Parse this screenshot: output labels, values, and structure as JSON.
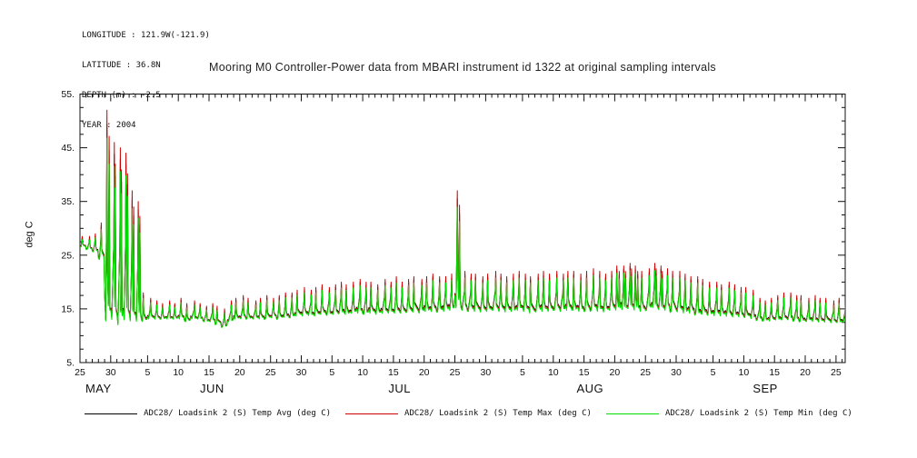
{
  "header": {
    "longitude": "LONGITUDE : 121.9W(-121.9)",
    "latitude": "LATITUDE : 36.8N",
    "depth": "DEPTH (m) : -2.5",
    "year": "YEAR : 2004"
  },
  "chart_data": {
    "type": "line",
    "title": "Mooring M0 Controller-Power data from MBARI instrument id 1322 at original sampling intervals",
    "ylabel": "deg C",
    "ylim": [
      5,
      55
    ],
    "x_domain_days": 124.5,
    "x_range_label": "May 25 to Sep 26 (year 2004), minor ticks daily, major ticks every 5 days",
    "grid": "off",
    "legend_position": "bottom",
    "y_ticks": [
      {
        "v": 5,
        "label": "5."
      },
      {
        "v": 15,
        "label": "15."
      },
      {
        "v": 25,
        "label": "25."
      },
      {
        "v": 35,
        "label": "35."
      },
      {
        "v": 45,
        "label": "45."
      },
      {
        "v": 55,
        "label": "55."
      }
    ],
    "x_major_ticks": [
      {
        "d": 0,
        "label": "25"
      },
      {
        "d": 5,
        "label": "30"
      },
      {
        "d": 11,
        "label": "5"
      },
      {
        "d": 16,
        "label": "10"
      },
      {
        "d": 21,
        "label": "15"
      },
      {
        "d": 26,
        "label": "20"
      },
      {
        "d": 31,
        "label": "25"
      },
      {
        "d": 36,
        "label": "30"
      },
      {
        "d": 41,
        "label": "5"
      },
      {
        "d": 46,
        "label": "10"
      },
      {
        "d": 51,
        "label": "15"
      },
      {
        "d": 56,
        "label": "20"
      },
      {
        "d": 61,
        "label": "25"
      },
      {
        "d": 66,
        "label": "30"
      },
      {
        "d": 72,
        "label": "5"
      },
      {
        "d": 77,
        "label": "10"
      },
      {
        "d": 82,
        "label": "15"
      },
      {
        "d": 87,
        "label": "20"
      },
      {
        "d": 92,
        "label": "25"
      },
      {
        "d": 97,
        "label": "30"
      },
      {
        "d": 103,
        "label": "5"
      },
      {
        "d": 108,
        "label": "10"
      },
      {
        "d": 113,
        "label": "15"
      },
      {
        "d": 118,
        "label": "20"
      },
      {
        "d": 123,
        "label": "25"
      }
    ],
    "month_labels": [
      {
        "label": "MAY",
        "d": 3
      },
      {
        "label": "JUN",
        "d": 21.5
      },
      {
        "label": "JUL",
        "d": 52
      },
      {
        "label": "AUG",
        "d": 83
      },
      {
        "label": "SEP",
        "d": 111.5
      }
    ],
    "series": [
      {
        "name": "ADC28/ Loadsink 2 (S) Temp Avg (deg C)",
        "color": "#000000",
        "stat": "avg"
      },
      {
        "name": "ADC28/ Loadsink 2 (S) Temp Max (deg C)",
        "color": "#cc0000",
        "stat": "max"
      },
      {
        "name": "ADC28/ Loadsink 2 (S) Temp Min (deg C)",
        "color": "#00dd00",
        "stat": "min"
      }
    ],
    "x_note": "index = days since May 25 2004",
    "daily_avg": [
      27.5,
      27.4,
      27.0,
      27.0,
      30.0,
      28.0,
      26.0,
      25.0,
      22.0,
      18.0,
      14.8,
      14.2,
      14.0,
      14.0,
      14.0,
      14.1,
      14.0,
      14.2,
      13.9,
      14.0,
      13.8,
      13.8,
      13.4,
      13.0,
      13.6,
      14.0,
      14.1,
      14.2,
      14.0,
      14.1,
      14.2,
      14.3,
      14.3,
      14.5,
      14.5,
      14.8,
      15.0,
      15.0,
      15.0,
      15.2,
      15.0,
      15.2,
      15.3,
      15.2,
      15.4,
      15.5,
      15.4,
      15.5,
      15.3,
      15.5,
      15.5,
      15.6,
      15.5,
      15.6,
      15.7,
      15.6,
      15.8,
      15.8,
      15.8,
      15.8,
      16.0,
      17.5,
      16.0,
      16.0,
      16.0,
      15.8,
      16.0,
      16.0,
      16.0,
      15.8,
      16.0,
      16.0,
      16.0,
      15.8,
      15.8,
      16.0,
      16.0,
      16.0,
      16.0,
      16.0,
      16.2,
      16.0,
      16.0,
      16.2,
      16.0,
      16.0,
      16.2,
      16.5,
      16.5,
      16.8,
      16.5,
      16.2,
      16.5,
      16.8,
      16.5,
      16.2,
      16.0,
      16.0,
      15.8,
      15.5,
      15.5,
      15.3,
      15.2,
      15.0,
      15.0,
      15.0,
      14.8,
      14.8,
      14.5,
      14.5,
      14.0,
      13.8,
      13.8,
      14.0,
      14.0,
      14.0,
      14.0,
      13.8,
      13.8,
      13.8,
      13.6,
      13.6,
      13.5,
      13.5,
      13.4
    ],
    "daily_max": [
      28.5,
      28.5,
      29.0,
      31.0,
      52.0,
      46.0,
      45.0,
      44.0,
      37.0,
      35.0,
      18.0,
      17.0,
      16.5,
      16.0,
      16.5,
      16.0,
      17.0,
      16.0,
      16.5,
      16.0,
      15.5,
      16.0,
      15.5,
      15.0,
      16.5,
      17.0,
      17.5,
      17.0,
      16.5,
      17.0,
      17.5,
      17.0,
      17.5,
      18.0,
      18.0,
      18.5,
      19.0,
      18.5,
      19.0,
      19.5,
      19.0,
      19.5,
      20.0,
      19.5,
      20.0,
      20.5,
      20.0,
      20.0,
      19.5,
      20.5,
      20.0,
      21.0,
      20.0,
      20.5,
      21.0,
      20.5,
      21.0,
      21.5,
      21.0,
      21.0,
      21.5,
      37.0,
      22.0,
      21.5,
      21.5,
      21.0,
      21.5,
      22.0,
      21.5,
      21.0,
      21.5,
      22.0,
      21.5,
      21.0,
      21.5,
      22.0,
      21.5,
      22.0,
      21.5,
      22.0,
      22.0,
      21.5,
      22.0,
      22.5,
      22.0,
      21.5,
      22.0,
      23.0,
      23.0,
      23.5,
      23.0,
      22.0,
      22.5,
      23.5,
      23.0,
      22.5,
      22.0,
      22.0,
      21.5,
      21.0,
      21.0,
      20.5,
      20.0,
      20.0,
      19.5,
      20.0,
      19.5,
      19.0,
      19.0,
      18.5,
      17.0,
      16.5,
      17.0,
      17.5,
      18.0,
      18.0,
      17.5,
      17.5,
      17.0,
      17.5,
      17.0,
      17.0,
      16.5,
      17.0,
      16.5
    ],
    "daily_min": [
      26.5,
      26.0,
      25.5,
      24.0,
      11.5,
      12.0,
      11.0,
      12.0,
      12.0,
      12.0,
      12.5,
      13.0,
      13.0,
      13.0,
      13.0,
      13.0,
      13.0,
      12.5,
      13.0,
      13.0,
      12.5,
      12.5,
      12.0,
      11.5,
      12.5,
      13.0,
      13.0,
      13.0,
      13.0,
      13.0,
      13.0,
      13.2,
      13.0,
      13.3,
      13.2,
      13.5,
      13.5,
      13.6,
      13.5,
      13.8,
      13.6,
      13.8,
      14.0,
      13.8,
      14.0,
      14.0,
      13.8,
      14.0,
      13.8,
      14.0,
      14.0,
      14.0,
      14.0,
      14.2,
      14.2,
      14.0,
      14.3,
      14.3,
      14.2,
      14.3,
      14.5,
      14.5,
      14.5,
      14.3,
      14.3,
      14.2,
      14.3,
      14.5,
      14.3,
      14.2,
      14.3,
      14.5,
      14.3,
      14.0,
      14.2,
      14.3,
      14.3,
      14.5,
      14.3,
      14.5,
      14.5,
      14.3,
      14.3,
      14.5,
      14.3,
      14.2,
      14.5,
      14.5,
      14.6,
      14.8,
      14.5,
      14.3,
      14.5,
      15.0,
      14.6,
      14.5,
      14.3,
      14.2,
      14.0,
      14.0,
      13.8,
      13.8,
      13.6,
      13.5,
      13.5,
      13.4,
      13.3,
      13.3,
      13.2,
      13.0,
      12.8,
      12.6,
      12.6,
      12.8,
      12.8,
      12.8,
      12.6,
      12.5,
      12.5,
      12.5,
      12.4,
      12.4,
      12.3,
      12.3,
      12.3
    ]
  }
}
